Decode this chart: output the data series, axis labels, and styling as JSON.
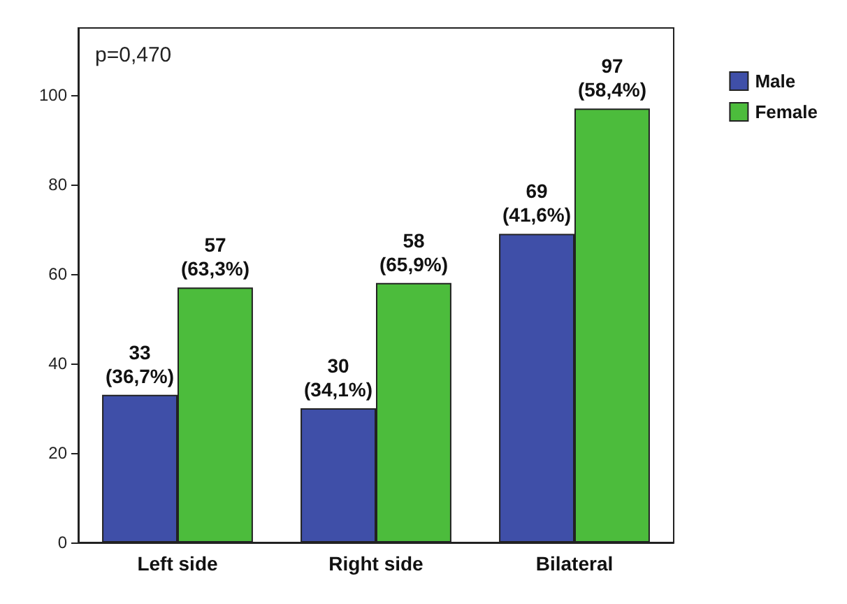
{
  "chart_data": {
    "type": "bar",
    "categories": [
      "Left side",
      "Right side",
      "Bilateral"
    ],
    "series": [
      {
        "name": "Male",
        "color": "#3f4fa8",
        "values": [
          33,
          30,
          69
        ],
        "value_labels": [
          "33\n(36,7%)",
          "30\n(34,1%)",
          "69\n(41,6%)"
        ]
      },
      {
        "name": "Female",
        "color": "#4cbc3c",
        "values": [
          57,
          58,
          97
        ],
        "value_labels": [
          "57\n(63,3%)",
          "58\n(65,9%)",
          "97\n(58,4%)"
        ]
      }
    ],
    "ylim": [
      0,
      115
    ],
    "yticks": [
      0,
      20,
      40,
      60,
      80,
      100
    ],
    "grid": false,
    "legend": "top right",
    "annotations": [
      "p=0,470"
    ]
  }
}
